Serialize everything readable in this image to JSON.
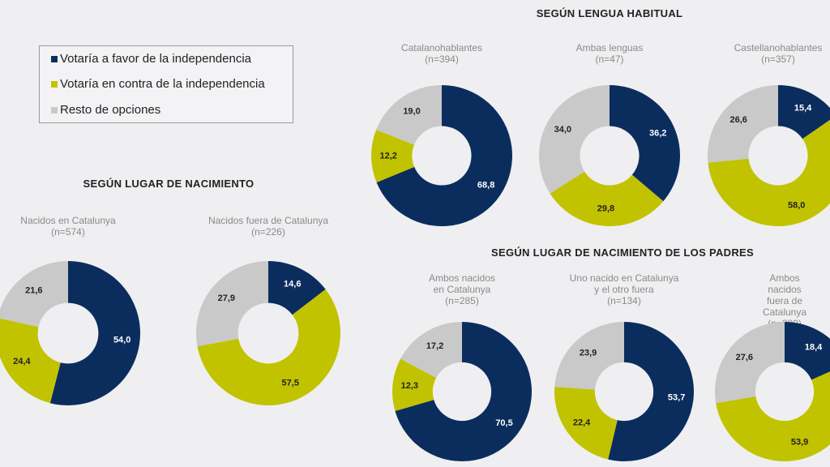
{
  "colors": {
    "favor": "#0b2d5e",
    "contra": "#c2c300",
    "resto": "#c9c9c9",
    "background": "#efeff1"
  },
  "legend": {
    "items": [
      {
        "label": "Votaría a favor de la independencia",
        "key": "favor"
      },
      {
        "label": "Votaría en contra de la independencia",
        "key": "contra"
      },
      {
        "label": "Resto de opciones",
        "key": "resto"
      }
    ]
  },
  "sections": {
    "nacimiento": "SEGÚN LUGAR DE NACIMIENTO",
    "lengua": "SEGÚN LENGUA HABITUAL",
    "padres": "SEGÚN LUGAR DE NACIMIENTO DE LOS PADRES"
  },
  "chart_data": [
    {
      "type": "pie",
      "donut": true,
      "group": "SEGÚN LUGAR DE NACIMIENTO",
      "title": "Nacidos en Catalunya\n(n=574)",
      "categories": [
        "Votaría a favor de la independencia",
        "Votaría en contra de la independencia",
        "Resto de opciones"
      ],
      "values": [
        54.0,
        24.4,
        21.6
      ]
    },
    {
      "type": "pie",
      "donut": true,
      "group": "SEGÚN LUGAR DE NACIMIENTO",
      "title": "Nacidos fuera de Catalunya\n(n=226)",
      "categories": [
        "Votaría a favor de la independencia",
        "Votaría en contra de la independencia",
        "Resto de opciones"
      ],
      "values": [
        14.6,
        57.5,
        27.9
      ]
    },
    {
      "type": "pie",
      "donut": true,
      "group": "SEGÚN LENGUA HABITUAL",
      "title": "Catalanohablantes\n(n=394)",
      "categories": [
        "Votaría a favor de la independencia",
        "Votaría en contra de la independencia",
        "Resto de opciones"
      ],
      "values": [
        68.8,
        12.2,
        19.0
      ]
    },
    {
      "type": "pie",
      "donut": true,
      "group": "SEGÚN LENGUA HABITUAL",
      "title": "Ambas lenguas\n(n=47)",
      "categories": [
        "Votaría a favor de la independencia",
        "Votaría en contra de la independencia",
        "Resto de opciones"
      ],
      "values": [
        36.2,
        29.8,
        34.0
      ]
    },
    {
      "type": "pie",
      "donut": true,
      "group": "SEGÚN LENGUA HABITUAL",
      "title": "Castellanohablantes\n(n=357)",
      "categories": [
        "Votaría a favor de la independencia",
        "Votaría en contra de la independencia",
        "Resto de opciones"
      ],
      "values": [
        15.4,
        58.0,
        26.6
      ]
    },
    {
      "type": "pie",
      "donut": true,
      "group": "SEGÚN LUGAR DE NACIMIENTO DE LOS PADRES",
      "title": "Ambos nacidos\nen Catalunya\n(n=285)",
      "categories": [
        "Votaría a favor de la independencia",
        "Votaría en contra de la independencia",
        "Resto de opciones"
      ],
      "values": [
        70.5,
        12.3,
        17.2
      ]
    },
    {
      "type": "pie",
      "donut": true,
      "group": "SEGÚN LUGAR DE NACIMIENTO DE LOS PADRES",
      "title": "Uno nacido en Catalunya\ny el otro fuera\n(n=134)",
      "categories": [
        "Votaría a favor de la independencia",
        "Votaría en contra de la independencia",
        "Resto de opciones"
      ],
      "values": [
        53.7,
        22.4,
        23.9
      ]
    },
    {
      "type": "pie",
      "donut": true,
      "group": "SEGÚN LUGAR DE NACIMIENTO DE LOS PADRES",
      "title": "Ambos nacidos\nfuera de Catalunya\n(n=380)",
      "categories": [
        "Votaría a favor de la independencia",
        "Votaría en contra de la independencia",
        "Resto de opciones"
      ],
      "values": [
        18.4,
        53.9,
        27.6
      ]
    }
  ]
}
